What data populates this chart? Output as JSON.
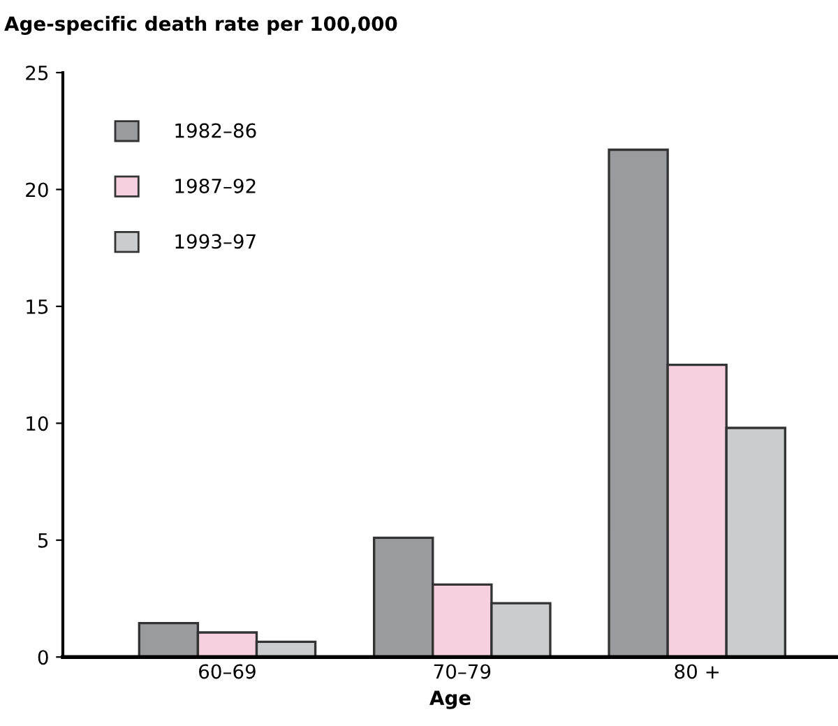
{
  "chart_data": {
    "type": "bar",
    "title": "Age-specific death rate per 100,000",
    "xlabel": "Age",
    "categories": [
      "60–69",
      "70–79",
      "80 +"
    ],
    "series": [
      {
        "name": "1982–86",
        "color": "#9a9b9f",
        "values": [
          1.45,
          5.1,
          21.7
        ]
      },
      {
        "name": "1987–92",
        "color": "#f6d0df",
        "values": [
          1.05,
          3.1,
          12.5
        ]
      },
      {
        "name": "1993–97",
        "color": "#cbcccd",
        "values": [
          0.65,
          2.3,
          9.8
        ]
      }
    ],
    "ylim": [
      0,
      25
    ],
    "yticks": [
      0,
      5,
      10,
      15,
      20,
      25
    ],
    "grid": false,
    "legend": "top left"
  }
}
